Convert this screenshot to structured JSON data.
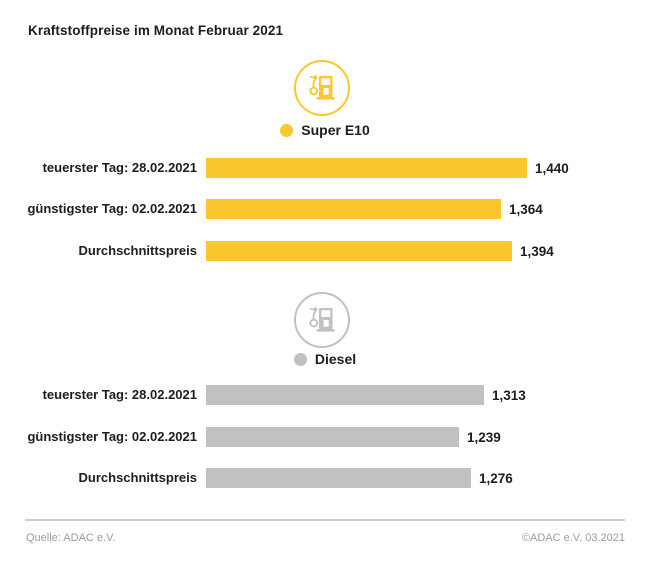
{
  "page": {
    "title": "Kraftstoffpreise im Monat Februar 2021"
  },
  "colors": {
    "super_e10_accent": "#FBC62E",
    "diesel_accent": "#C1C1C1",
    "text_dark": "#1D1D1B",
    "footer_text": "#9C9C9C",
    "footer_line": "#CBCBCB",
    "background": "#FFFFFF"
  },
  "chart_data": [
    {
      "type": "bar",
      "orientation": "horizontal",
      "title": "Super E10",
      "legend_label": "Super E10",
      "color": "#FBC62E",
      "categories": [
        "teuerster Tag: 28.02.2021",
        "günstigster Tag: 02.02.2021",
        "Durchschnittspreis"
      ],
      "values": [
        1.44,
        1.364,
        1.394
      ],
      "value_labels": [
        "1,440",
        "1,364",
        "1,394"
      ],
      "grid": false,
      "legend_position": "top-center"
    },
    {
      "type": "bar",
      "orientation": "horizontal",
      "title": "Diesel",
      "legend_label": "Diesel",
      "color": "#C1C1C1",
      "categories": [
        "teuerster Tag: 28.02.2021",
        "günstigster Tag: 02.02.2021",
        "Durchschnittspreis"
      ],
      "values": [
        1.313,
        1.239,
        1.276
      ],
      "value_labels": [
        "1,313",
        "1,239",
        "1,276"
      ],
      "grid": false,
      "legend_position": "top-center"
    }
  ],
  "footer": {
    "source": "Quelle: ADAC e.V.",
    "copyright": "©ADAC e.V. 03.2021"
  }
}
